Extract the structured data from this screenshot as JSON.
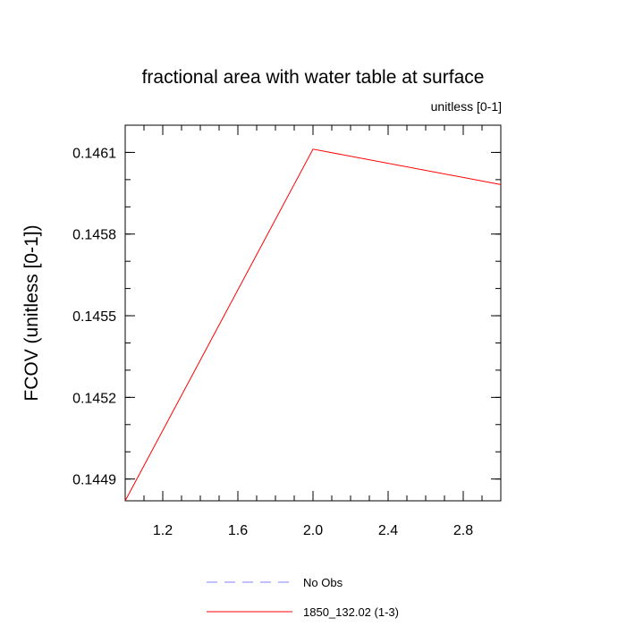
{
  "chart_data": {
    "type": "line",
    "title": "fractional area with water table at surface",
    "subtitle": "unitless [0-1]",
    "ylabel": "FCOV  (unitless [0-1])",
    "xlabel": "",
    "xlim": [
      1.0,
      3.0
    ],
    "ylim": [
      0.14482,
      0.1462
    ],
    "x_ticks": [
      1.2,
      1.6,
      2.0,
      2.4,
      2.8
    ],
    "x_tick_labels": [
      "1.2",
      "1.6",
      "2.0",
      "2.4",
      "2.8"
    ],
    "y_ticks": [
      0.1449,
      0.1452,
      0.1455,
      0.1458,
      0.1461
    ],
    "y_tick_labels": [
      "0.1449",
      "0.1452",
      "0.1455",
      "0.1458",
      "0.1461"
    ],
    "grid": false,
    "legend_position": "bottom-center",
    "series": [
      {
        "name": "No Obs",
        "x": [],
        "y": [],
        "color": "#8080ff",
        "dash": "dashed"
      },
      {
        "name": "1850_132.02 (1-3)",
        "x": [
          1,
          2,
          3
        ],
        "y": [
          0.14482,
          0.146112,
          0.145982
        ],
        "color": "#ff0000",
        "dash": "solid"
      }
    ]
  }
}
